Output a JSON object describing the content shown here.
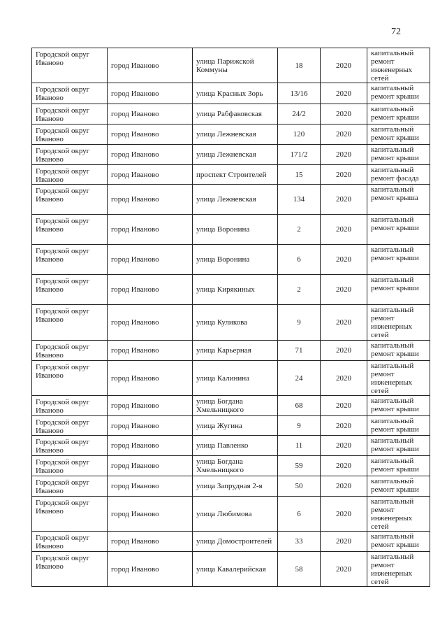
{
  "page_number": "72",
  "table": {
    "rows": [
      [
        "Городской округ Иваново",
        "город Иваново",
        "улица Парижской Коммуны",
        "18",
        "2020",
        "капитальный ремонт инженерных сетей"
      ],
      [
        "Городской округ Иваново",
        "город Иваново",
        "улица Красных Зорь",
        "13/16",
        "2020",
        "капитальный ремонт крыши"
      ],
      [
        "Городской округ Иваново",
        "город Иваново",
        "улица Рабфаковская",
        "24/2",
        "2020",
        "капитальный ремонт крыши"
      ],
      [
        "Городской округ Иваново",
        "город Иваново",
        "улица Лежневская",
        "120",
        "2020",
        "капитальный ремонт крыши"
      ],
      [
        "Городской округ Иваново",
        "город Иваново",
        "улица Лежневская",
        "171/2",
        "2020",
        "капитальный ремонт крыши"
      ],
      [
        "Городской округ Иваново",
        "город Иваново",
        "проспект Строителей",
        "15",
        "2020",
        "капитальный ремонт фасада"
      ],
      [
        "Городской округ Иваново",
        "город Иваново",
        "улица Лежневская",
        "134",
        "2020",
        "капитальный ремонт крыша"
      ],
      [
        "Городской округ Иваново",
        "город Иваново",
        "улица Воронина",
        "2",
        "2020",
        "капитальный ремонт крыши"
      ],
      [
        "Городской округ Иваново",
        "город Иваново",
        "улица Воронина",
        "6",
        "2020",
        "капитальный ремонт крыши"
      ],
      [
        "Городской округ Иваново",
        "город Иваново",
        "улица Кирякиных",
        "2",
        "2020",
        "капитальный ремонт крыши"
      ],
      [
        "Городской округ Иваново",
        "город Иваново",
        "улица Куликова",
        "9",
        "2020",
        "капитальный ремонт инженерных сетей"
      ],
      [
        "Городской округ Иваново",
        "город Иваново",
        "улица Карьерная",
        "71",
        "2020",
        "капитальный ремонт крыши"
      ],
      [
        "Городской округ Иваново",
        "город Иваново",
        "улица Калинина",
        "24",
        "2020",
        "капитальный ремонт инженерных сетей"
      ],
      [
        "Городской округ Иваново",
        "город Иваново",
        "улица Богдана Хмельницкого",
        "68",
        "2020",
        "капитальный ремонт крыши"
      ],
      [
        "Городской округ Иваново",
        "город Иваново",
        "улица Жугина",
        "9",
        "2020",
        "капитальный ремонт крыши"
      ],
      [
        "Городской округ Иваново",
        "город Иваново",
        "улица Павленко",
        "11",
        "2020",
        "капитальный ремонт крыши"
      ],
      [
        "Городской округ Иваново",
        "город Иваново",
        "улица Богдана Хмельницкого",
        "59",
        "2020",
        "капитальный ремонт крыши"
      ],
      [
        "Городской округ Иваново",
        "город Иваново",
        "улица Запрудная 2-я",
        "50",
        "2020",
        "капитальный ремонт крыши"
      ],
      [
        "Городской округ Иваново",
        "город Иваново",
        "улица Любимова",
        "6",
        "2020",
        "капитальный ремонт инженерных сетей"
      ],
      [
        "Городской округ Иваново",
        "город Иваново",
        "улица Домостроителей",
        "33",
        "2020",
        "капитальный ремонт крыши"
      ],
      [
        "Городской округ Иваново",
        "город Иваново",
        "улица Кавалерийская",
        "58",
        "2020",
        "капитальный ремонт инженерных сетей"
      ]
    ]
  }
}
